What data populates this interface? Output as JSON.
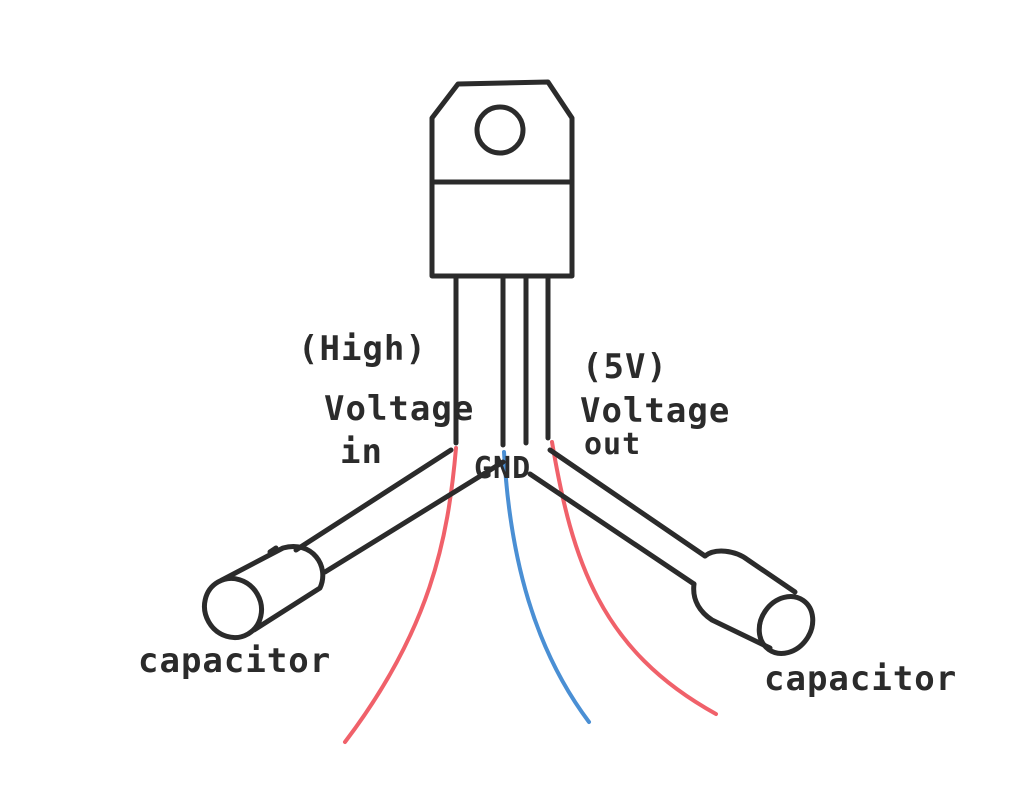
{
  "labels": {
    "high": "(High)",
    "voltage_in_1": "Voltage",
    "voltage_in_2": "in",
    "five_v": "(5V)",
    "voltage_out_1": "Voltage",
    "voltage_out_2": "out",
    "gnd": "GND",
    "capacitor_left": "capacitor",
    "capacitor_right": "capacitor"
  },
  "colors": {
    "ink": "#2b2b2b",
    "positive_wire": "#f0616a",
    "ground_wire": "#4a8fd4"
  }
}
